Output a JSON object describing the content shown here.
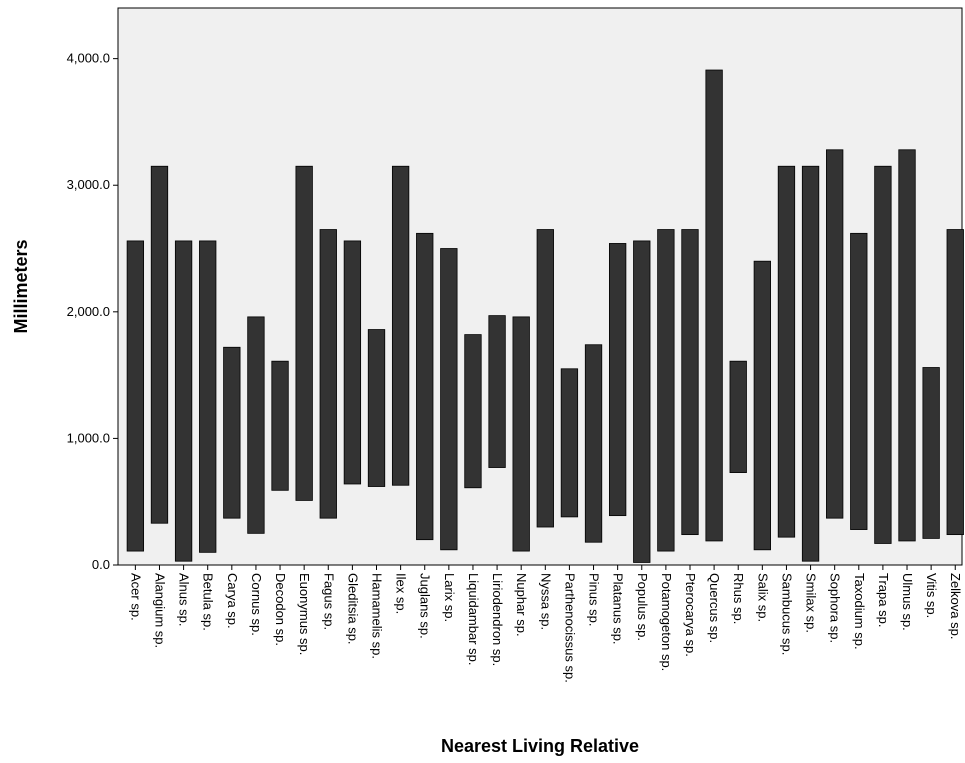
{
  "chart_data": {
    "type": "bar",
    "subtype": "floating-range",
    "xlabel": "Nearest Living Relative",
    "ylabel": "Millimeters",
    "ylim": [
      0,
      4400
    ],
    "yticks": [
      0,
      1000,
      2000,
      3000,
      4000
    ],
    "ytick_labels": [
      "0.0",
      "1,000.0",
      "2,000.0",
      "3,000.0",
      "4,000.0"
    ],
    "grid": false,
    "legend": "none",
    "bar_color": "#333333",
    "plot_background": "#f0f0f0",
    "categories": [
      "Acer sp.",
      "Alangium sp.",
      "Alnus sp.",
      "Betula sp.",
      "Carya sp.",
      "Cornus sp.",
      "Decodon sp.",
      "Euonymus sp.",
      "Fagus sp.",
      "Gleditsia sp.",
      "Hamamelis sp.",
      "Ilex sp.",
      "Juglans sp.",
      "Larix sp.",
      "Liquidambar sp.",
      "Liriodendron sp.",
      "Nuphar sp.",
      "Nyssa sp.",
      "Parthenocissus sp.",
      "Pinus sp.",
      "Platanus sp.",
      "Populus sp.",
      "Potamogeton sp.",
      "Pterocarya sp.",
      "Quercus sp.",
      "Rhus sp.",
      "Salix sp.",
      "Sambucus sp.",
      "Smilax sp.",
      "Sophora sp.",
      "Taxodium sp.",
      "Trapa sp.",
      "Ulmus sp.",
      "Vitis sp.",
      "Zelkova sp."
    ],
    "low": [
      110,
      330,
      30,
      100,
      370,
      250,
      590,
      510,
      370,
      640,
      620,
      630,
      200,
      120,
      610,
      770,
      110,
      300,
      380,
      180,
      390,
      20,
      110,
      240,
      190,
      730,
      120,
      220,
      30,
      370,
      280,
      170,
      190,
      210,
      240
    ],
    "high": [
      2560,
      3150,
      2560,
      2560,
      1720,
      1960,
      1610,
      3150,
      2650,
      2560,
      1860,
      3150,
      2620,
      2500,
      1820,
      1970,
      1960,
      2650,
      1550,
      1740,
      2540,
      2560,
      2650,
      2650,
      3910,
      1610,
      2400,
      3150,
      3150,
      3280,
      2620,
      3150,
      3280,
      1560,
      2650
    ]
  }
}
